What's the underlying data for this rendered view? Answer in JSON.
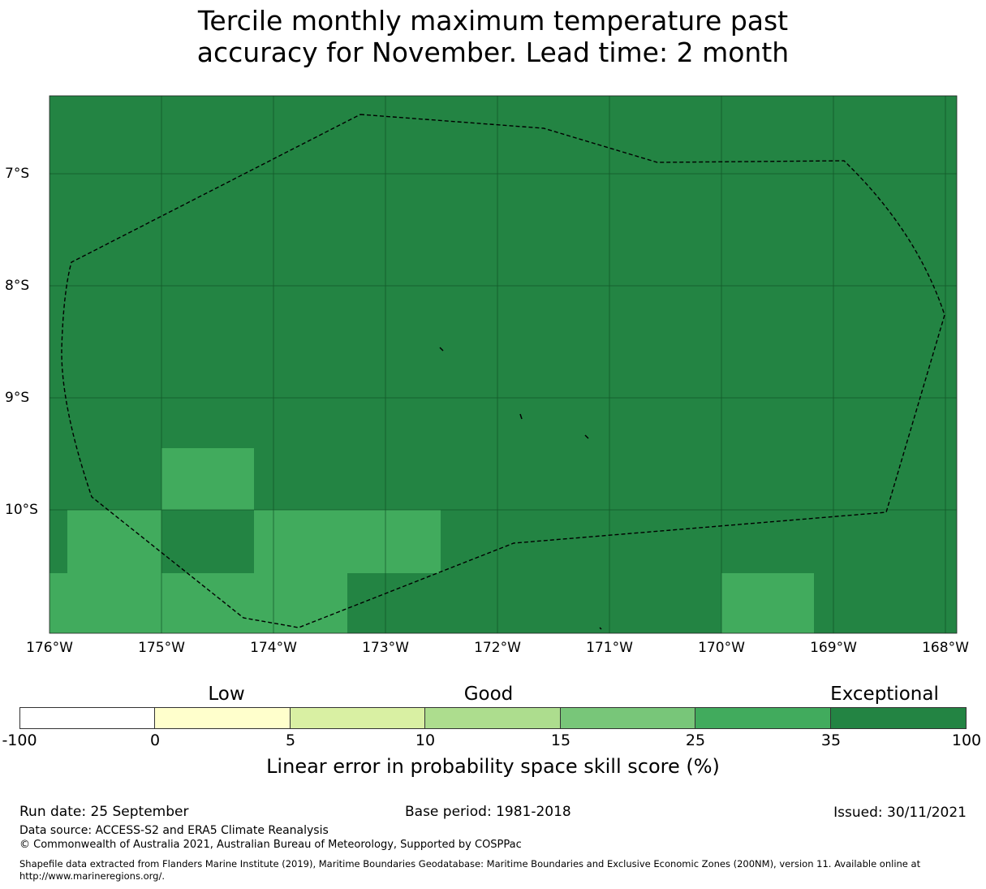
{
  "title": {
    "line1": "Tercile monthly maximum temperature past",
    "line2": "accuracy for November. Lead time: 2 month"
  },
  "map": {
    "lat_labels": [
      "7°S",
      "8°S",
      "9°S",
      "10°S"
    ],
    "lon_labels": [
      "176°W",
      "175°W",
      "174°W",
      "173°W",
      "172°W",
      "171°W",
      "170°W",
      "169°W",
      "168°W"
    ],
    "colors": {
      "exceptional": "#238443",
      "high": "#41ab5d"
    }
  },
  "colorbar": {
    "categories": [
      "Low",
      "Good",
      "Exceptional"
    ],
    "ticks": [
      "-100",
      "0",
      "5",
      "10",
      "15",
      "25",
      "35",
      "100"
    ],
    "colors": [
      "#ffffff",
      "#ffffcc",
      "#d9f0a3",
      "#addd8e",
      "#78c679",
      "#41ab5d",
      "#238443"
    ],
    "label": "Linear error in probability space skill score (%)"
  },
  "footer": {
    "run_date": "Run date: 25 September",
    "base_period": "Base period: 1981-2018",
    "issued": "Issued: 30/11/2021",
    "data_source": "Data source: ACCESS-S2 and ERA5 Climate Reanalysis",
    "copyright": "© Commonwealth of Australia 2021, Australian Bureau of Meteorology, Supported by COSPPac",
    "shapefile_line1": "Shapefile data extracted from Flanders Marine Institute (2019), Maritime Boundaries Geodatabase: Maritime Boundaries and Exclusive Economic Zones (200NM), version 11. Available online at",
    "shapefile_line2": "http://www.marineregions.org/."
  }
}
